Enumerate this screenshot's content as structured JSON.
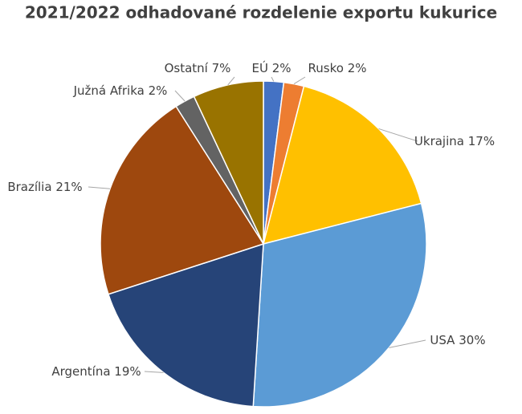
{
  "chart_data": {
    "type": "pie",
    "title": "2021/2022 odhadované rozdelenie exportu kukurice",
    "categories": [
      "EÚ",
      "Rusko",
      "Ukrajina",
      "USA",
      "Argentína",
      "Brazília",
      "Južná Afrika",
      "Ostatní"
    ],
    "values": [
      2,
      2,
      17,
      30,
      19,
      21,
      2,
      7
    ],
    "value_labels": [
      "2%",
      "2%",
      "17%",
      "30%",
      "19%",
      "21%",
      "2%",
      "7%"
    ],
    "colors": [
      "#4472c4",
      "#ed7d31",
      "#ffc000",
      "#5b9bd5",
      "#264478",
      "#9e480e",
      "#636363",
      "#997300"
    ]
  }
}
